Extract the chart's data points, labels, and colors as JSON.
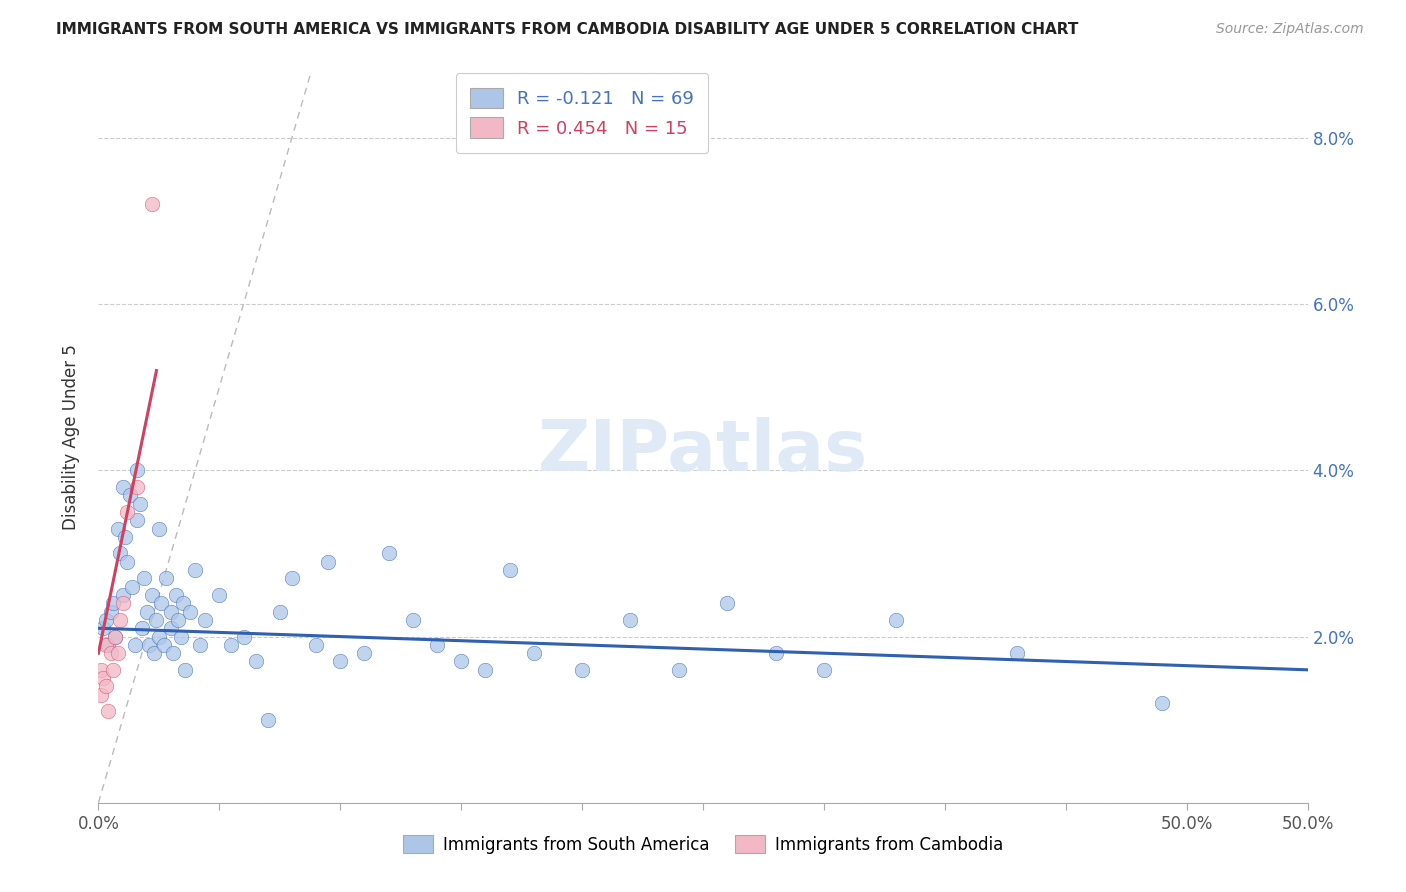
{
  "title": "IMMIGRANTS FROM SOUTH AMERICA VS IMMIGRANTS FROM CAMBODIA DISABILITY AGE UNDER 5 CORRELATION CHART",
  "source": "Source: ZipAtlas.com",
  "ylabel": "Disability Age Under 5",
  "xlim": [
    0.0,
    0.5
  ],
  "ylim": [
    0.0,
    0.088
  ],
  "xticks": [
    0.0,
    0.05,
    0.1,
    0.15,
    0.2,
    0.25,
    0.3,
    0.35,
    0.4,
    0.45,
    0.5
  ],
  "yticks_right": [
    0.0,
    0.02,
    0.04,
    0.06,
    0.08
  ],
  "ytick_labels_right": [
    "",
    "2.0%",
    "4.0%",
    "6.0%",
    "8.0%"
  ],
  "xtick_labels_show": {
    "0.0": "0.0%",
    "0.5": "50.0%"
  },
  "legend_label1": "R = -0.121   N = 69",
  "legend_label2": "R = 0.454   N = 15",
  "legend_bottom_label1": "Immigrants from South America",
  "legend_bottom_label2": "Immigrants from Cambodia",
  "color_blue": "#adc6e8",
  "color_pink": "#f2b8c6",
  "line_blue": "#3060b0",
  "line_pink": "#d04060",
  "line_diag": "#bbbbbb",
  "watermark": "ZIPatlas",
  "blue_line_y0": 0.021,
  "blue_line_y1": 0.016,
  "pink_line_x0": 0.0,
  "pink_line_y0": 0.018,
  "pink_line_x1": 0.024,
  "pink_line_y1": 0.052,
  "south_america_x": [
    0.002,
    0.003,
    0.004,
    0.005,
    0.006,
    0.007,
    0.008,
    0.009,
    0.01,
    0.01,
    0.011,
    0.012,
    0.013,
    0.014,
    0.015,
    0.016,
    0.016,
    0.017,
    0.018,
    0.019,
    0.02,
    0.021,
    0.022,
    0.023,
    0.024,
    0.025,
    0.025,
    0.026,
    0.027,
    0.028,
    0.03,
    0.03,
    0.031,
    0.032,
    0.033,
    0.034,
    0.035,
    0.036,
    0.038,
    0.04,
    0.042,
    0.044,
    0.05,
    0.055,
    0.06,
    0.065,
    0.07,
    0.075,
    0.08,
    0.09,
    0.095,
    0.1,
    0.11,
    0.12,
    0.13,
    0.14,
    0.15,
    0.16,
    0.17,
    0.18,
    0.2,
    0.22,
    0.24,
    0.26,
    0.28,
    0.3,
    0.33,
    0.38,
    0.44
  ],
  "south_america_y": [
    0.021,
    0.022,
    0.019,
    0.023,
    0.024,
    0.02,
    0.033,
    0.03,
    0.025,
    0.038,
    0.032,
    0.029,
    0.037,
    0.026,
    0.019,
    0.04,
    0.034,
    0.036,
    0.021,
    0.027,
    0.023,
    0.019,
    0.025,
    0.018,
    0.022,
    0.033,
    0.02,
    0.024,
    0.019,
    0.027,
    0.023,
    0.021,
    0.018,
    0.025,
    0.022,
    0.02,
    0.024,
    0.016,
    0.023,
    0.028,
    0.019,
    0.022,
    0.025,
    0.019,
    0.02,
    0.017,
    0.01,
    0.023,
    0.027,
    0.019,
    0.029,
    0.017,
    0.018,
    0.03,
    0.022,
    0.019,
    0.017,
    0.016,
    0.028,
    0.018,
    0.016,
    0.022,
    0.016,
    0.024,
    0.018,
    0.016,
    0.022,
    0.018,
    0.012
  ],
  "cambodia_x": [
    0.001,
    0.001,
    0.002,
    0.003,
    0.003,
    0.004,
    0.005,
    0.006,
    0.007,
    0.008,
    0.009,
    0.01,
    0.012,
    0.016,
    0.022
  ],
  "cambodia_y": [
    0.013,
    0.016,
    0.015,
    0.014,
    0.019,
    0.011,
    0.018,
    0.016,
    0.02,
    0.018,
    0.022,
    0.024,
    0.035,
    0.038,
    0.072
  ]
}
